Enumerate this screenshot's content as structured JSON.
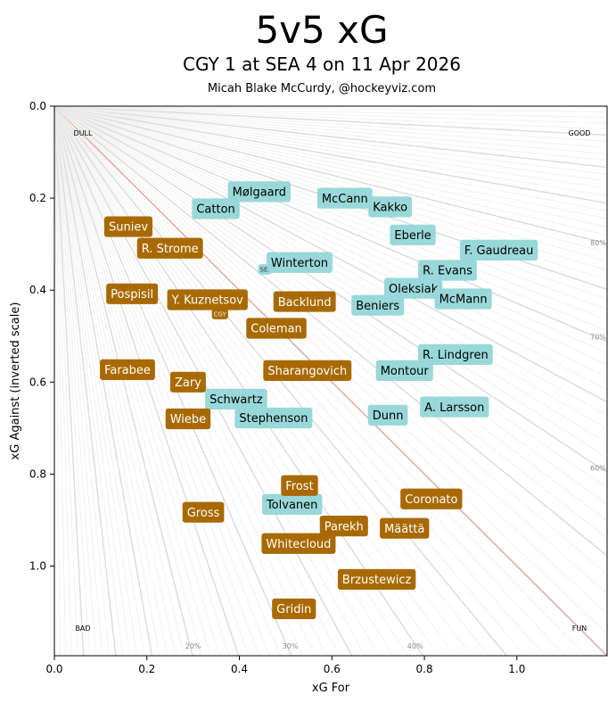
{
  "chart_data": {
    "type": "scatter",
    "title": "5v5 xG",
    "subtitle": "CGY 1 at SEA 4 on 11 Apr 2026",
    "credit": "Micah Blake McCurdy, @hockeyviz.com",
    "xlabel": "xG For",
    "ylabel": "xG Against (inverted scale)",
    "xlim": [
      0,
      1.195
    ],
    "ylim": [
      1.195,
      0
    ],
    "y_inverted": true,
    "x_ticks": [
      "0.0",
      "0.2",
      "0.4",
      "0.6",
      "0.8",
      "1.0"
    ],
    "y_ticks": [
      "0.0",
      "0.2",
      "0.4",
      "0.6",
      "0.8",
      "1.0"
    ],
    "corner_labels": {
      "top_left": "DULL",
      "top_right": "GOOD",
      "bottom_left": "BAD",
      "bottom_right": "FUN"
    },
    "percent_labels_bottom": [
      "20%",
      "30%",
      "40%"
    ],
    "percent_labels_right": [
      "60%",
      "70%",
      "80%"
    ],
    "colors": {
      "SEA": "#99d8d9",
      "CGY": "#a86a00",
      "even_line": "#e2a89e",
      "guide_line": "#dddddd"
    },
    "teams": [
      {
        "name": "SEA",
        "label": "SE.",
        "x": 0.455,
        "y": 0.355
      },
      {
        "name": "CGY",
        "label": "CGY",
        "x": 0.358,
        "y": 0.452
      }
    ],
    "series": [
      {
        "name": "SEA",
        "points": [
          {
            "label": "Mølgaard",
            "x": 0.443,
            "y": 0.186
          },
          {
            "label": "Catton",
            "x": 0.349,
            "y": 0.223
          },
          {
            "label": "McCann",
            "x": 0.628,
            "y": 0.2
          },
          {
            "label": "Kakko",
            "x": 0.726,
            "y": 0.219
          },
          {
            "label": "Eberle",
            "x": 0.775,
            "y": 0.28
          },
          {
            "label": "F. Gaudreau",
            "x": 0.961,
            "y": 0.313
          },
          {
            "label": "Winterton",
            "x": 0.53,
            "y": 0.34
          },
          {
            "label": "R. Evans",
            "x": 0.85,
            "y": 0.357
          },
          {
            "label": "Oleksiak",
            "x": 0.776,
            "y": 0.396
          },
          {
            "label": "McMann",
            "x": 0.884,
            "y": 0.419
          },
          {
            "label": "Beniers",
            "x": 0.699,
            "y": 0.433
          },
          {
            "label": "R. Lindgren",
            "x": 0.867,
            "y": 0.54
          },
          {
            "label": "Montour",
            "x": 0.757,
            "y": 0.575
          },
          {
            "label": "Schwartz",
            "x": 0.393,
            "y": 0.637
          },
          {
            "label": "Stephenson",
            "x": 0.474,
            "y": 0.678
          },
          {
            "label": "Dunn",
            "x": 0.721,
            "y": 0.672
          },
          {
            "label": "A. Larsson",
            "x": 0.865,
            "y": 0.654
          },
          {
            "label": "Tolvanen",
            "x": 0.514,
            "y": 0.866
          }
        ]
      },
      {
        "name": "CGY",
        "points": [
          {
            "label": "Suniev",
            "x": 0.16,
            "y": 0.262
          },
          {
            "label": "R. Strome",
            "x": 0.25,
            "y": 0.309
          },
          {
            "label": "Pospisil",
            "x": 0.168,
            "y": 0.408
          },
          {
            "label": "Y. Kuznetsov",
            "x": 0.331,
            "y": 0.421
          },
          {
            "label": "Backlund",
            "x": 0.541,
            "y": 0.425
          },
          {
            "label": "Coleman",
            "x": 0.48,
            "y": 0.483
          },
          {
            "label": "Farabee",
            "x": 0.158,
            "y": 0.573
          },
          {
            "label": "Sharangovich",
            "x": 0.547,
            "y": 0.575
          },
          {
            "label": "Zary",
            "x": 0.289,
            "y": 0.6
          },
          {
            "label": "Wiebe",
            "x": 0.289,
            "y": 0.68
          },
          {
            "label": "Frost",
            "x": 0.53,
            "y": 0.825
          },
          {
            "label": "Coronato",
            "x": 0.815,
            "y": 0.854
          },
          {
            "label": "Gross",
            "x": 0.322,
            "y": 0.883
          },
          {
            "label": "Parekh",
            "x": 0.626,
            "y": 0.913
          },
          {
            "label": "Määttä",
            "x": 0.757,
            "y": 0.918
          },
          {
            "label": "Whitecloud",
            "x": 0.528,
            "y": 0.951
          },
          {
            "label": "Brzustewicz",
            "x": 0.697,
            "y": 1.029
          },
          {
            "label": "Gridin",
            "x": 0.518,
            "y": 1.093
          }
        ]
      }
    ]
  }
}
